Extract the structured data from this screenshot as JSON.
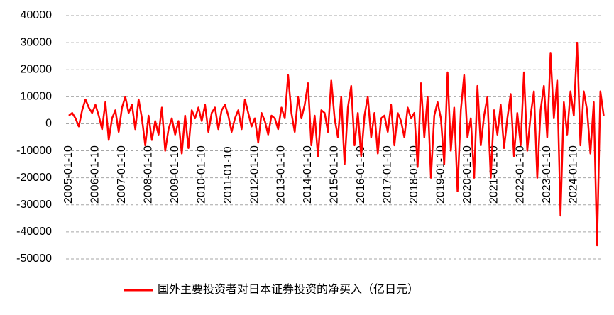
{
  "chart_data": {
    "type": "line",
    "categories": [
      "2005-01-10",
      null,
      null,
      null,
      null,
      null,
      null,
      null,
      "2006-01-10",
      null,
      null,
      null,
      null,
      null,
      null,
      null,
      "2007-01-10",
      null,
      null,
      null,
      null,
      null,
      null,
      null,
      "2008-01-10",
      null,
      null,
      null,
      null,
      null,
      null,
      null,
      "2009-01-10",
      null,
      null,
      null,
      null,
      null,
      null,
      null,
      "2010-01-10",
      null,
      null,
      null,
      null,
      null,
      null,
      null,
      "2011-01-10",
      null,
      null,
      null,
      null,
      null,
      null,
      null,
      "2012-01-10",
      null,
      null,
      null,
      null,
      null,
      null,
      null,
      "2013-01-10",
      null,
      null,
      null,
      null,
      null,
      null,
      null,
      "2014-01-10",
      null,
      null,
      null,
      null,
      null,
      null,
      null,
      "2015-01-10",
      null,
      null,
      null,
      null,
      null,
      null,
      null,
      "2016-01-10",
      null,
      null,
      null,
      null,
      null,
      null,
      null,
      "2017-01-10",
      null,
      null,
      null,
      null,
      null,
      null,
      null,
      "2018-01-10",
      null,
      null,
      null,
      null,
      null,
      null,
      null,
      "2019-01-10",
      null,
      null,
      null,
      null,
      null,
      null,
      null,
      "2020-01-10",
      null,
      null,
      null,
      null,
      null,
      null,
      null,
      "2021-01-10",
      null,
      null,
      null,
      null,
      null,
      null,
      null,
      "2022-01-10",
      null,
      null,
      null,
      null,
      null,
      null,
      null,
      "2023-01-10",
      null,
      null,
      null,
      null,
      null,
      null,
      null,
      "2024-01-10",
      null,
      null,
      null,
      null,
      null,
      null,
      null,
      null,
      null
    ],
    "series": [
      {
        "name": "国外主要投资者对日本证券投资的净买入（亿日元）",
        "color": "#ff0000",
        "values": [
          3000,
          4000,
          2000,
          -1000,
          5000,
          9000,
          6000,
          4000,
          7000,
          3000,
          -2000,
          8000,
          -6000,
          2000,
          5000,
          -3000,
          6000,
          10000,
          4000,
          7000,
          -2000,
          9000,
          2000,
          -8000,
          3000,
          -6000,
          1000,
          -4000,
          6000,
          -10000,
          -2000,
          2000,
          -4000,
          1000,
          -11000,
          3000,
          -9000,
          5000,
          2000,
          6000,
          1000,
          7000,
          -3000,
          4000,
          6000,
          -2000,
          5000,
          7000,
          3000,
          -3000,
          2000,
          5000,
          -2000,
          9000,
          4000,
          -1000,
          2000,
          -7000,
          4000,
          1000,
          -4000,
          3000,
          2000,
          -2000,
          6000,
          2000,
          18000,
          4000,
          -3000,
          10000,
          2000,
          7000,
          15000,
          -8000,
          3000,
          -12000,
          5000,
          4000,
          -3000,
          16000,
          2000,
          -5000,
          10000,
          -15000,
          6000,
          14000,
          -8000,
          4000,
          -12000,
          3000,
          10000,
          -5000,
          4000,
          -11000,
          2000,
          3000,
          -3000,
          7000,
          -8000,
          4000,
          1000,
          -5000,
          6000,
          2000,
          4000,
          -16000,
          15000,
          -5000,
          10000,
          -20000,
          3000,
          8000,
          2000,
          -15000,
          19000,
          -10000,
          6000,
          -25000,
          5000,
          18000,
          -5000,
          2000,
          -20000,
          14000,
          -8000,
          3000,
          10000,
          -20000,
          5000,
          -4000,
          7000,
          -9000,
          2000,
          11000,
          -12000,
          4000,
          -8000,
          19000,
          -10000,
          3000,
          12000,
          -20000,
          5000,
          14000,
          -5000,
          26000,
          2000,
          16000,
          -34000,
          8000,
          -4000,
          12000,
          3000,
          30000,
          -8000,
          12000,
          5000,
          -11000,
          8000,
          -45000,
          12000,
          3000
        ]
      }
    ],
    "ylim": [
      -50000,
      40000
    ],
    "yticks": [
      -50000,
      -40000,
      -30000,
      -20000,
      -10000,
      0,
      10000,
      20000,
      30000,
      40000
    ],
    "grid": true
  }
}
